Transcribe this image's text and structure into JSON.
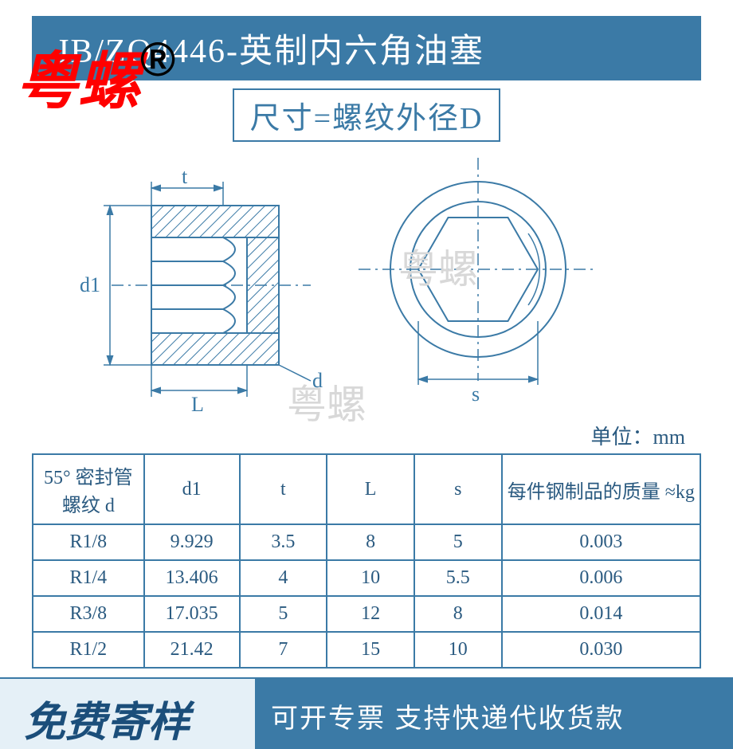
{
  "header": {
    "title": "JB/ZQ4446-英制内六角油塞"
  },
  "overlay": {
    "brand": "粤螺",
    "registered": "®"
  },
  "size_label": "尺寸=螺纹外径D",
  "diagram": {
    "labels": {
      "t": "t",
      "d1": "d1",
      "L": "L",
      "d": "d",
      "s": "s"
    },
    "colors": {
      "stroke": "#3b7aa6",
      "hatch": "#3b7aa6",
      "bg": "#ffffff"
    },
    "watermark_text": "粤螺"
  },
  "unit_label": "单位：mm",
  "table": {
    "columns": [
      "55° 密封管螺纹 d",
      "d1",
      "t",
      "L",
      "s",
      "每件钢制品的质量 ≈kg"
    ],
    "rows": [
      [
        "R1/8",
        "9.929",
        "3.5",
        "8",
        "5",
        "0.003"
      ],
      [
        "R1/4",
        "13.406",
        "4",
        "10",
        "5.5",
        "0.006"
      ],
      [
        "R3/8",
        "17.035",
        "5",
        "12",
        "8",
        "0.014"
      ],
      [
        "R1/2",
        "21.42",
        "7",
        "15",
        "10",
        "0.030"
      ]
    ],
    "col_widths": [
      "140px",
      "120px",
      "110px",
      "110px",
      "110px",
      "250px"
    ]
  },
  "bottom": {
    "left": "免费寄样",
    "right": "可开专票 支持快递代收货款"
  }
}
